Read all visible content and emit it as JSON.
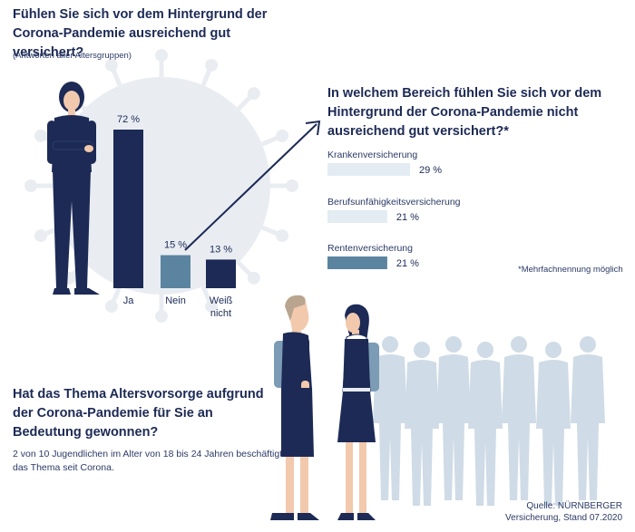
{
  "question1": {
    "title": "Fühlen Sie sich vor dem Hintergrund der Corona-Pandemie ausreichend gut versichert?",
    "subtitle": "(Antworten aller Altersgruppen)"
  },
  "question2": {
    "title": "In welchem Bereich fühlen Sie sich vor dem Hinter­grund der Corona-Pandemie nicht ausreichend gut versichert?*",
    "footnote": "*Mehrfachnennung möglich"
  },
  "question3": {
    "title": "Hat das Thema Altersvorsorge aufgrund der Corona-Pandemie für Sie an Bedeutung gewonnen?",
    "body": "2 von 10 Jugendlichen im Alter von 18 bis 24 Jahren beschäftigt das Thema seit Corona."
  },
  "source": "Quelle: NÜRNBERGER Versicherung, Stand 07.2020",
  "colors": {
    "navy": "#1c2a55",
    "steel": "#5a84a0",
    "light": "#e2ecf2",
    "virus": "#e9edf2",
    "crowd": "#cfdbe6"
  },
  "chart_data": [
    {
      "type": "bar",
      "categories": [
        "Ja",
        "Nein",
        "Weiß nicht"
      ],
      "values": [
        72,
        15,
        13
      ],
      "value_labels": [
        "72 %",
        "15 %",
        "13 %"
      ],
      "bar_colors": [
        "#1c2a55",
        "#5a84a0",
        "#1c2a55"
      ],
      "ylim": [
        0,
        100
      ]
    },
    {
      "type": "bar",
      "orientation": "horizontal",
      "categories": [
        "Krankenversicherung",
        "Berufsunfähigkeitsversicherung",
        "Rentenversicherung"
      ],
      "values": [
        29,
        21,
        21
      ],
      "value_labels": [
        "29 %",
        "21 %",
        "21 %"
      ],
      "bar_colors": [
        "#e2ecf2",
        "#e2ecf2",
        "#5a84a0"
      ],
      "xlim": [
        0,
        30
      ]
    }
  ]
}
